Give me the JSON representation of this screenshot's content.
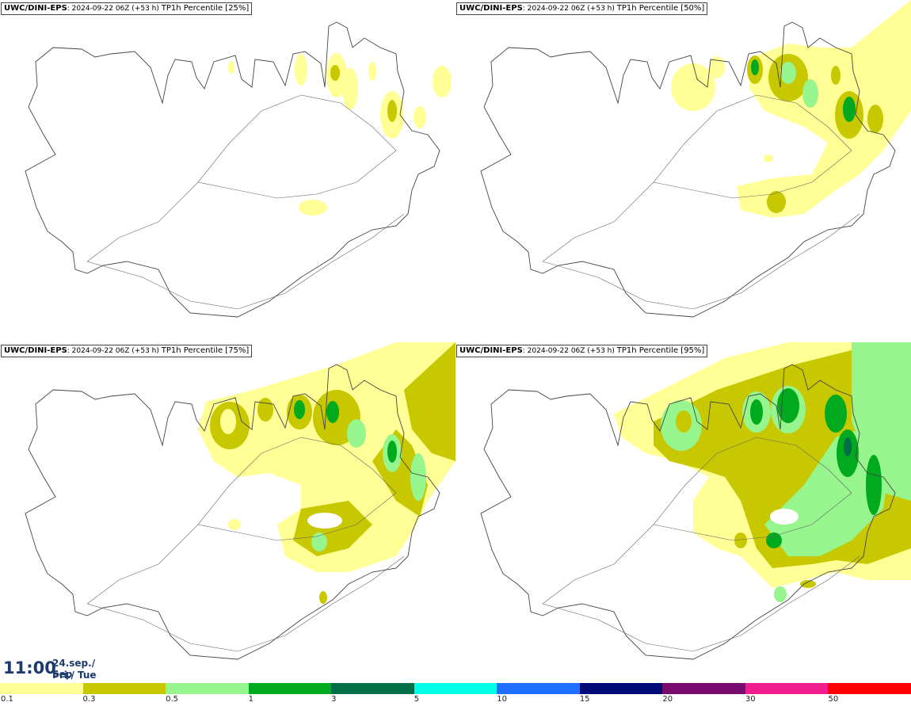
{
  "panels": [
    {
      "model": "UWC/DINI-EPS",
      "run": ": 2024-09-22 06Z (+53 h)",
      "param": "TP1h Percentile [25%]"
    },
    {
      "model": "UWC/DINI-EPS",
      "run": ": 2024-09-22 06Z (+53 h)",
      "param": "TP1h Percentile [50%]"
    },
    {
      "model": "UWC/DINI-EPS",
      "run": ": 2024-09-22 06Z (+53 h)",
      "param": "TP1h Percentile [75%]"
    },
    {
      "model": "UWC/DINI-EPS",
      "run": ": 2024-09-22 06Z (+53 h)",
      "param": "TP1h Percentile [95%]"
    }
  ],
  "valid_time": {
    "time": "11:00",
    "date": "24.sep./ Sep",
    "day": "Þri./ Tue"
  },
  "legend": {
    "colors": [
      "#ffff96",
      "#c8c800",
      "#96f58c",
      "#00aa1e",
      "#006e46",
      "#00ffe6",
      "#1e6eff",
      "#000a78",
      "#780a6e",
      "#f01e8c",
      "#ff0000"
    ],
    "labels": [
      "0.1",
      "0.3",
      "0.5",
      "1",
      "3",
      "5",
      "10",
      "15",
      "20",
      "30",
      "50"
    ]
  }
}
